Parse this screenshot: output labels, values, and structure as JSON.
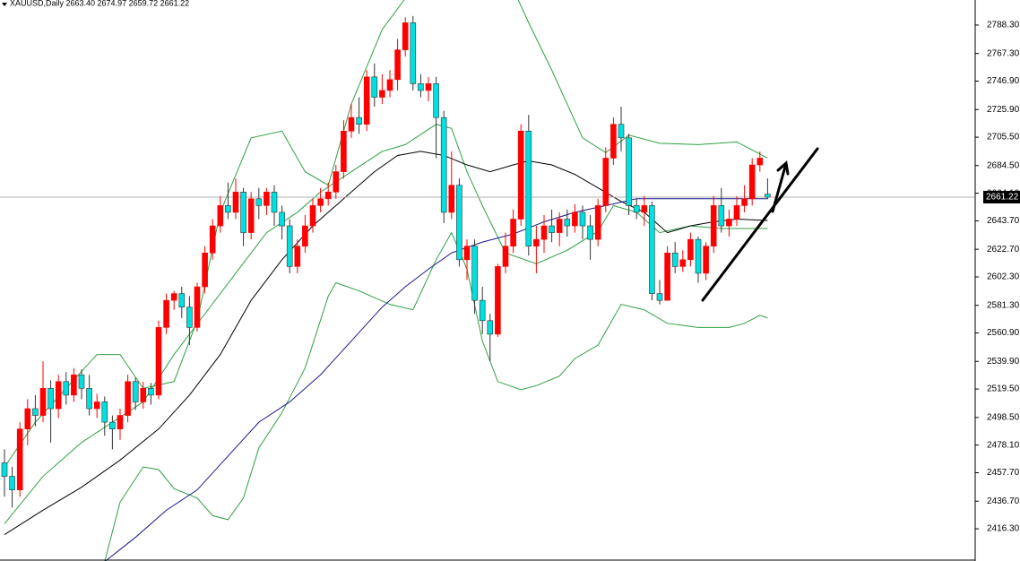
{
  "chart_data": {
    "type": "candlestick",
    "title": "XAUUSD,Daily  2663.40 2674.97 2659.72 2661.22",
    "ylim": [
      2392.5,
      2806.8
    ],
    "xlim": [
      -0.58,
      125.93
    ],
    "yticks": [
      {
        "value": 2416.3,
        "label": "2416.30"
      },
      {
        "value": 2436.7,
        "label": "2436.70"
      },
      {
        "value": 2457.7,
        "label": "2457.70"
      },
      {
        "value": 2478.1,
        "label": "2478.10"
      },
      {
        "value": 2498.5,
        "label": "2498.50"
      },
      {
        "value": 2519.5,
        "label": "2519.50"
      },
      {
        "value": 2539.9,
        "label": "2539.90"
      },
      {
        "value": 2560.9,
        "label": "2560.90"
      },
      {
        "value": 2581.3,
        "label": "2581.30"
      },
      {
        "value": 2602.3,
        "label": "2602.30"
      },
      {
        "value": 2622.7,
        "label": "2622.70"
      },
      {
        "value": 2643.7,
        "label": "2643.70"
      },
      {
        "value": 2664.1,
        "label": "2664.10"
      },
      {
        "value": 2684.5,
        "label": "2684.50"
      },
      {
        "value": 2705.5,
        "label": "2705.50"
      },
      {
        "value": 2725.9,
        "label": "2725.90"
      },
      {
        "value": 2746.9,
        "label": "2746.90"
      },
      {
        "value": 2767.3,
        "label": "2767.30"
      },
      {
        "value": 2788.3,
        "label": "2788.30"
      }
    ],
    "up_color": "#ff0000",
    "down_color": "#00e0e0",
    "open": [
      2465,
      2455,
      2445,
      2490,
      2505,
      2500,
      2520,
      2505,
      2525,
      2515,
      2530,
      2520,
      2505,
      2510,
      2495,
      2490,
      2500,
      2525,
      2510,
      2520,
      2515,
      2565,
      2585,
      2590,
      2580,
      2565,
      2595,
      2620,
      2640,
      2655,
      2650,
      2665,
      2635,
      2660,
      2655,
      2665,
      2650,
      2640,
      2610,
      2625,
      2640,
      2655,
      2660,
      2665,
      2680,
      2710,
      2720,
      2715,
      2750,
      2735,
      2740,
      2748,
      2770,
      2790,
      2745,
      2740,
      2745,
      2720,
      2650,
      2670,
      2615,
      2625,
      2585,
      2570,
      2560,
      2610,
      2625,
      2645,
      2710,
      2625,
      2630,
      2640,
      2635,
      2645,
      2640,
      2650,
      2640,
      2630,
      2655,
      2690,
      2715,
      2705,
      2655,
      2650,
      2655,
      2590,
      2585,
      2620,
      2610,
      2615,
      2630,
      2605,
      2625,
      2655,
      2640,
      2645,
      2655,
      2660,
      2685,
      2663.4
    ],
    "high": [
      2475,
      2462,
      2495,
      2512,
      2515,
      2540,
      2526,
      2530,
      2532,
      2535,
      2534,
      2530,
      2516,
      2514,
      2500,
      2505,
      2530,
      2528,
      2525,
      2524,
      2570,
      2590,
      2592,
      2595,
      2588,
      2598,
      2625,
      2645,
      2662,
      2672,
      2675,
      2668,
      2665,
      2668,
      2668,
      2670,
      2655,
      2645,
      2630,
      2648,
      2660,
      2668,
      2672,
      2685,
      2718,
      2730,
      2735,
      2755,
      2760,
      2752,
      2755,
      2778,
      2794,
      2795,
      2752,
      2750,
      2750,
      2725,
      2695,
      2675,
      2630,
      2630,
      2595,
      2575,
      2612,
      2635,
      2652,
      2715,
      2722,
      2640,
      2648,
      2652,
      2650,
      2652,
      2656,
      2655,
      2648,
      2660,
      2698,
      2720,
      2728,
      2708,
      2660,
      2662,
      2658,
      2600,
      2625,
      2628,
      2622,
      2635,
      2632,
      2628,
      2662,
      2668,
      2652,
      2662,
      2670,
      2690,
      2695,
      2674.97
    ],
    "low": [
      2440,
      2432,
      2440,
      2478,
      2492,
      2495,
      2480,
      2498,
      2508,
      2510,
      2512,
      2500,
      2498,
      2485,
      2475,
      2482,
      2495,
      2504,
      2505,
      2508,
      2512,
      2560,
      2578,
      2572,
      2552,
      2562,
      2590,
      2615,
      2635,
      2645,
      2645,
      2625,
      2630,
      2645,
      2648,
      2640,
      2630,
      2605,
      2605,
      2620,
      2635,
      2650,
      2655,
      2660,
      2675,
      2705,
      2708,
      2710,
      2728,
      2730,
      2735,
      2740,
      2765,
      2740,
      2735,
      2732,
      2690,
      2642,
      2645,
      2610,
      2600,
      2575,
      2560,
      2540,
      2558,
      2605,
      2620,
      2640,
      2618,
      2605,
      2620,
      2628,
      2625,
      2632,
      2635,
      2630,
      2615,
      2625,
      2650,
      2685,
      2695,
      2648,
      2645,
      2640,
      2585,
      2582,
      2585,
      2605,
      2606,
      2610,
      2598,
      2600,
      2620,
      2635,
      2632,
      2640,
      2650,
      2655,
      2680,
      2659.72
    ],
    "close": [
      2455,
      2445,
      2490,
      2505,
      2500,
      2520,
      2505,
      2525,
      2515,
      2530,
      2520,
      2505,
      2510,
      2495,
      2490,
      2500,
      2525,
      2510,
      2520,
      2515,
      2565,
      2585,
      2590,
      2580,
      2565,
      2595,
      2620,
      2640,
      2655,
      2650,
      2665,
      2635,
      2660,
      2655,
      2665,
      2650,
      2640,
      2610,
      2625,
      2640,
      2655,
      2660,
      2665,
      2680,
      2710,
      2720,
      2715,
      2750,
      2735,
      2740,
      2748,
      2770,
      2790,
      2745,
      2740,
      2745,
      2720,
      2650,
      2670,
      2615,
      2625,
      2585,
      2570,
      2560,
      2610,
      2625,
      2645,
      2710,
      2625,
      2630,
      2640,
      2635,
      2645,
      2640,
      2650,
      2640,
      2630,
      2655,
      2690,
      2715,
      2705,
      2655,
      2650,
      2655,
      2590,
      2585,
      2620,
      2610,
      2615,
      2630,
      2605,
      2625,
      2655,
      2640,
      2645,
      2655,
      2660,
      2685,
      2690,
      2661.22
    ],
    "lines": [
      {
        "color": "#2ea043",
        "x": [
          0,
          4,
          8,
          12,
          15,
          18,
          22,
          25,
          28,
          32,
          36,
          39,
          42,
          45,
          49,
          52,
          56,
          61,
          66,
          68,
          71,
          75,
          78,
          81,
          85,
          90,
          95,
          99
        ],
        "values": [
          2462,
          2495,
          2520,
          2545,
          2545,
          2520,
          2525,
          2570,
          2650,
          2705,
          2710,
          2680,
          2670,
          2730,
          2785,
          2808,
          2815,
          2820,
          2815,
          2790,
          2755,
          2705,
          2694,
          2707,
          2701,
          2700,
          2702,
          2690
        ]
      },
      {
        "color": "#2ea043",
        "x": [
          0,
          5,
          10,
          14,
          18,
          22,
          26,
          30,
          34,
          38,
          41,
          45,
          49,
          52,
          56,
          58,
          60,
          62,
          65,
          69,
          73,
          77,
          79,
          82,
          85,
          89,
          93,
          96,
          99
        ],
        "values": [
          2420,
          2455,
          2480,
          2495,
          2510,
          2545,
          2575,
          2605,
          2635,
          2650,
          2665,
          2680,
          2695,
          2700,
          2715,
          2712,
          2680,
          2655,
          2620,
          2612,
          2622,
          2636,
          2655,
          2650,
          2635,
          2640,
          2638,
          2638,
          2638
        ]
      },
      {
        "color": "#2ea043",
        "x": [
          13,
          15,
          18,
          20,
          22,
          25,
          27,
          29,
          31,
          33,
          36,
          39,
          42,
          43,
          46,
          50,
          53,
          56,
          58,
          60,
          62,
          64,
          67,
          69,
          72,
          74,
          77,
          80,
          83,
          86,
          90,
          94,
          96,
          98,
          99
        ],
        "values": [
          2392,
          2436,
          2462,
          2460,
          2446,
          2439,
          2426,
          2423,
          2439,
          2476,
          2502,
          2535,
          2588,
          2598,
          2592,
          2582,
          2578,
          2615,
          2635,
          2608,
          2555,
          2525,
          2519,
          2522,
          2529,
          2542,
          2552,
          2582,
          2578,
          2568,
          2565,
          2565,
          2568,
          2574,
          2572
        ]
      },
      {
        "color": "#000000",
        "x": [
          0,
          5,
          10,
          15,
          20,
          24,
          28,
          32,
          36,
          40,
          44,
          48,
          51,
          54,
          57,
          60,
          63,
          66,
          68,
          71,
          74,
          77,
          80,
          83,
          86,
          89,
          92,
          95,
          99
        ],
        "values": [
          2412,
          2430,
          2447,
          2467,
          2490,
          2515,
          2545,
          2585,
          2615,
          2640,
          2660,
          2680,
          2692,
          2695,
          2692,
          2685,
          2680,
          2685,
          2688,
          2685,
          2678,
          2668,
          2658,
          2650,
          2635,
          2640,
          2643,
          2645,
          2644
        ]
      },
      {
        "color": "#1a1a8c",
        "x": [
          13,
          17,
          21,
          25,
          29,
          33,
          37,
          41,
          45,
          49,
          52,
          55,
          58,
          62,
          66,
          70,
          74,
          78,
          82,
          88,
          93,
          99
        ],
        "values": [
          2392,
          2410,
          2430,
          2445,
          2470,
          2495,
          2510,
          2530,
          2555,
          2580,
          2595,
          2608,
          2620,
          2628,
          2634,
          2643,
          2650,
          2655,
          2660,
          2660,
          2660,
          2660
        ]
      }
    ],
    "last_price": 2661.22
  }
}
